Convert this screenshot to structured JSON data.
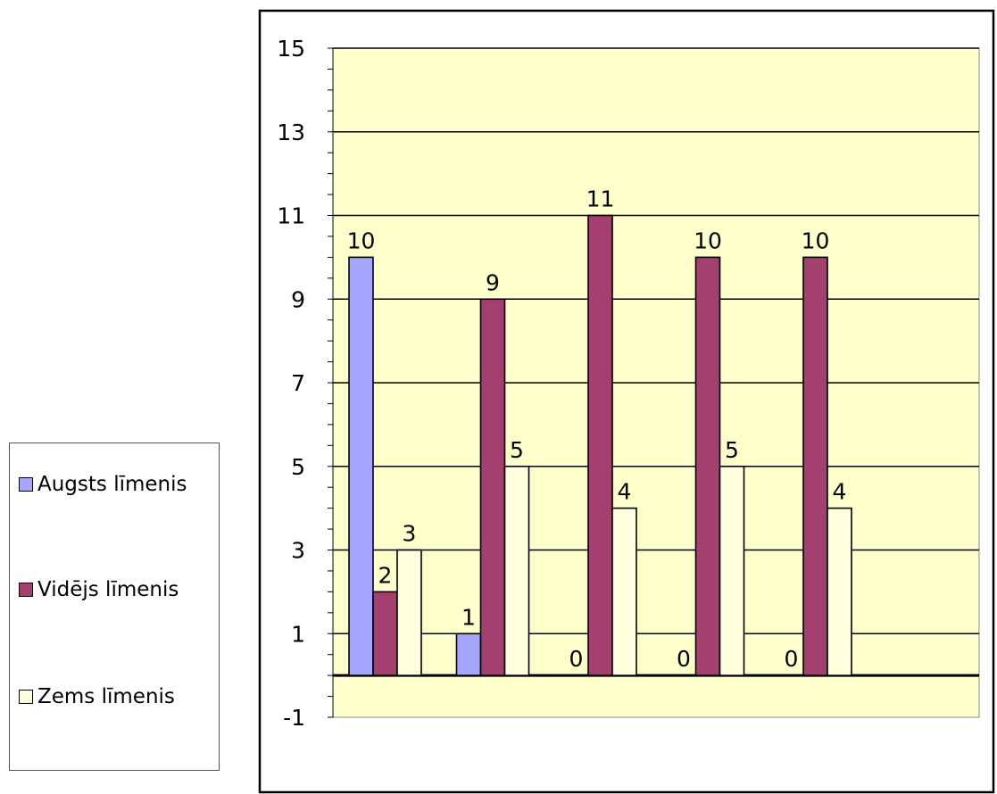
{
  "chart_data": {
    "type": "bar",
    "categories": [
      "",
      "",
      "",
      "",
      ""
    ],
    "series": [
      {
        "name": "Augsts līmenis",
        "color": "#a6a6ff",
        "values": [
          10,
          1,
          0,
          0,
          0
        ]
      },
      {
        "name": "Vidējs līmenis",
        "color": "#a3406f",
        "values": [
          2,
          9,
          11,
          10,
          10
        ]
      },
      {
        "name": "Zems līmenis",
        "color": "#ffffe0",
        "values": [
          3,
          5,
          4,
          5,
          4
        ]
      }
    ],
    "ylim": [
      -1,
      15
    ],
    "yticks": [
      15,
      13,
      11,
      9,
      7,
      5,
      3,
      1,
      -1
    ],
    "plot_background": "#ffffcc",
    "grid": true,
    "legend_position": "left",
    "title": "",
    "xlabel": "",
    "ylabel": ""
  }
}
